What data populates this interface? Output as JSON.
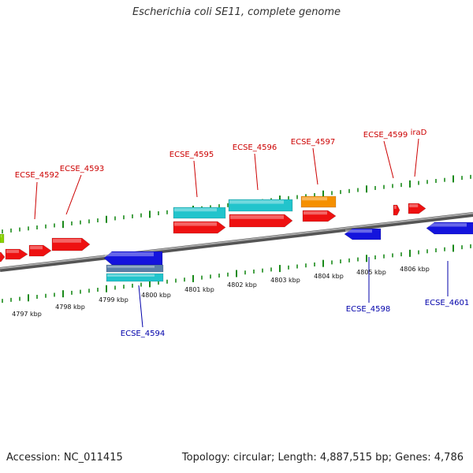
{
  "title": "Escherichia coli SE11, complete genome",
  "footer": {
    "accession": "Accession: NC_011415",
    "summary": "Topology: circular; Length: 4,887,515 bp; Genes: 4,786"
  },
  "colors": {
    "top_label": "#cc0000",
    "bottom_label": "#0000aa",
    "tick": "#1a8a1a",
    "backbone": "#7a7a7a",
    "red_feature": "#ee1111",
    "blue_feature": "#1414dd",
    "cyan_feature": "#22c4cc",
    "orange_feature": "#f59000",
    "steel_feature": "#5a7fa8",
    "lime_feature": "#8bd400"
  },
  "kbp_labels": [
    "4797 kbp",
    "4798 kbp",
    "4799 kbp",
    "4800 kbp",
    "4801 kbp",
    "4802 kbp",
    "4803 kbp",
    "4804 kbp",
    "4805 kbp",
    "4806 kbp"
  ],
  "gene_labels_top": [
    "ECSE_4592",
    "ECSE_4593",
    "ECSE_4595",
    "ECSE_4596",
    "ECSE_4597",
    "ECSE_4599",
    "iraD"
  ],
  "gene_labels_bottom": [
    "ECSE_4594",
    "ECSE_4598",
    "ECSE_4601"
  ]
}
